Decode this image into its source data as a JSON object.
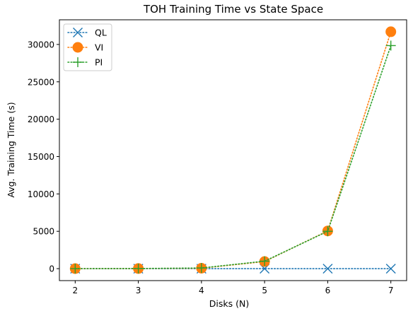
{
  "chart_data": {
    "type": "line",
    "title": "TOH Training Time vs State Space",
    "xlabel": "Disks (N)",
    "ylabel": "Avg. Training Time (s)",
    "x": [
      2,
      3,
      4,
      5,
      6,
      7
    ],
    "xticks": [
      "2",
      "3",
      "4",
      "5",
      "6",
      "7"
    ],
    "yticks": [
      "0",
      "5000",
      "10000",
      "15000",
      "20000",
      "25000",
      "30000"
    ],
    "xlim": [
      1.75,
      7.25
    ],
    "ylim": [
      -1600,
      33300
    ],
    "grid": false,
    "legend_position": "top-left",
    "series": [
      {
        "name": "QL",
        "values": [
          0,
          0,
          0,
          0,
          0,
          0
        ],
        "color": "#1f77b4",
        "marker": "x",
        "linestyle": "dotted"
      },
      {
        "name": "VI",
        "values": [
          5,
          15,
          60,
          950,
          5050,
          31700
        ],
        "color": "#ff7f0e",
        "marker": "circle",
        "linestyle": "dotted"
      },
      {
        "name": "PI",
        "values": [
          5,
          20,
          90,
          1000,
          5000,
          29850
        ],
        "color": "#2ca02c",
        "marker": "plus",
        "linestyle": "dotted"
      }
    ]
  }
}
